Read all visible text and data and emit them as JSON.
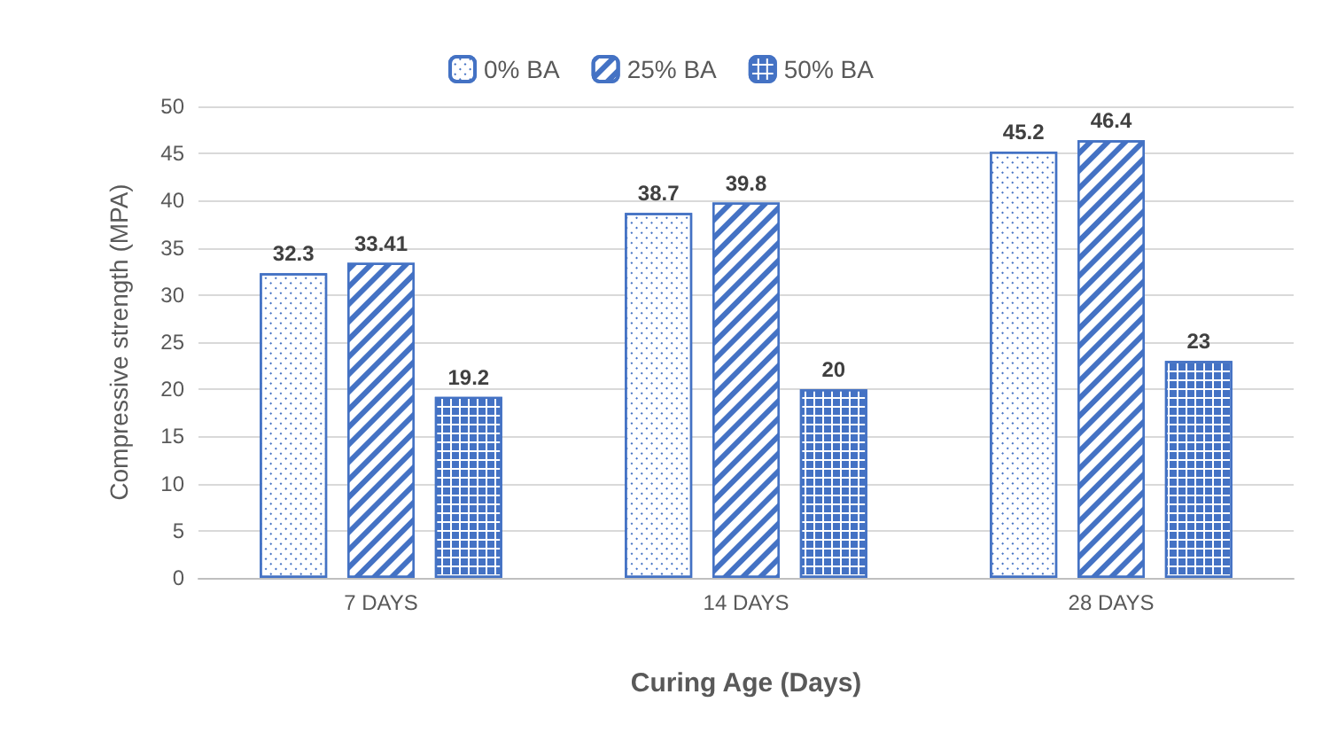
{
  "chart_data": {
    "type": "bar",
    "xlabel": "Curing Age (Days)",
    "ylabel": "Compressive strength (MPA)",
    "categories": [
      "7 DAYS",
      "14 DAYS",
      "28 DAYS"
    ],
    "series": [
      {
        "name": "0% BA",
        "color": "#4472c4",
        "values": [
          32.3,
          38.7,
          45.2
        ]
      },
      {
        "name": "25% BA",
        "color": "#4472c4",
        "values": [
          33.41,
          39.8,
          46.4
        ]
      },
      {
        "name": "50% BA",
        "color": "#4472c4",
        "values": [
          19.2,
          20,
          23
        ]
      }
    ],
    "ylim": [
      0,
      50
    ],
    "yticks": [
      0,
      5,
      10,
      15,
      20,
      25,
      30,
      35,
      40,
      45,
      50
    ],
    "grid": "y",
    "legend": "top",
    "data_labels": true
  }
}
